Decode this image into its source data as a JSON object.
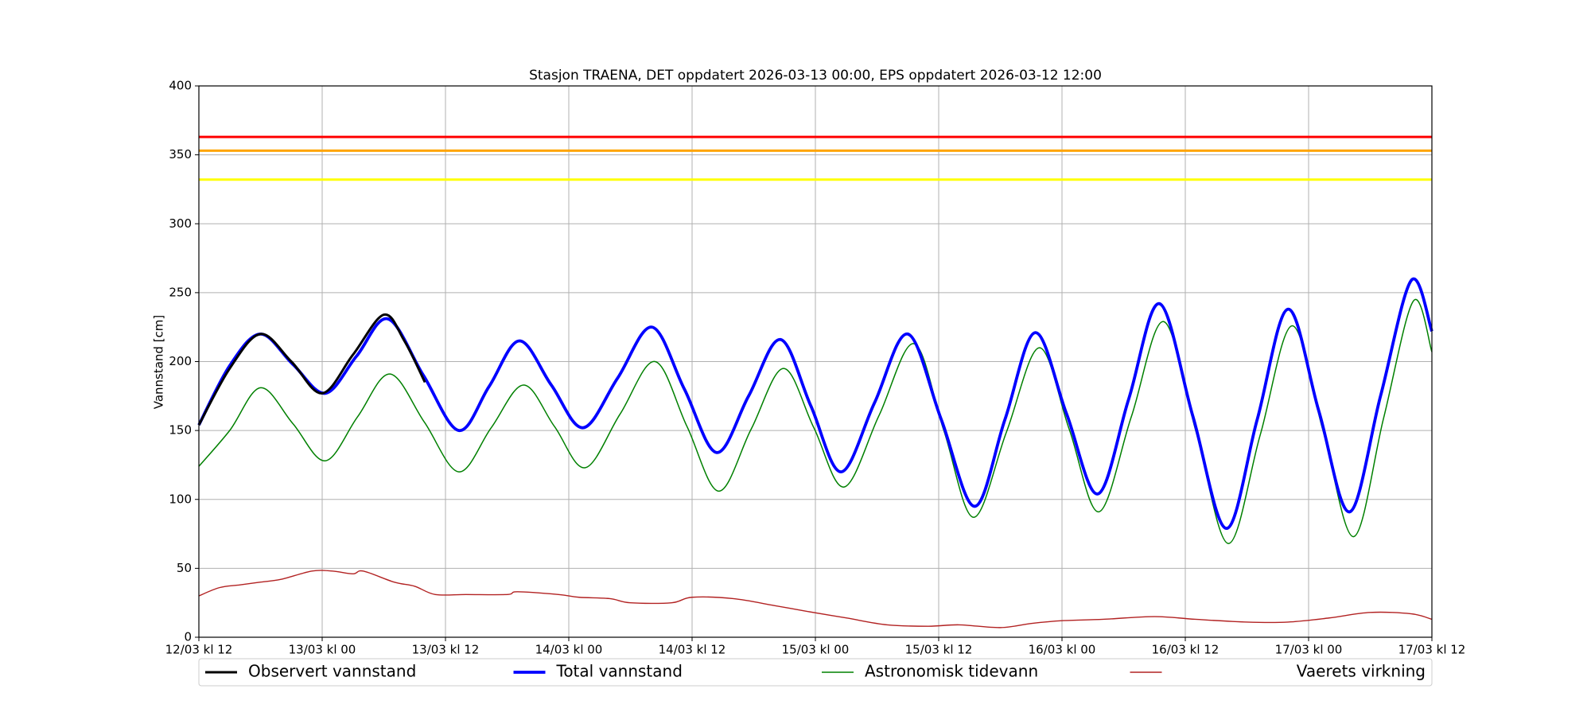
{
  "chart_data": {
    "type": "line",
    "title": "Stasjon TRAENA, DET oppdatert 2026-03-13 00:00, EPS oppdatert 2026-03-12 12:00",
    "ylabel": "Vannstand [cm]",
    "xlim": [
      0,
      120
    ],
    "xticks": [
      {
        "value": 0,
        "label": "12/03 kl 12"
      },
      {
        "value": 12,
        "label": "13/03 kl 00"
      },
      {
        "value": 24,
        "label": "13/03 kl 12"
      },
      {
        "value": 36,
        "label": "14/03 kl 00"
      },
      {
        "value": 48,
        "label": "14/03 kl 12"
      },
      {
        "value": 60,
        "label": "15/03 kl 00"
      },
      {
        "value": 72,
        "label": "15/03 kl 12"
      },
      {
        "value": 84,
        "label": "16/03 kl 00"
      },
      {
        "value": 96,
        "label": "16/03 kl 12"
      },
      {
        "value": 108,
        "label": "17/03 kl 00"
      },
      {
        "value": 120,
        "label": "17/03 kl 12"
      }
    ],
    "ylim": [
      0,
      400
    ],
    "yticks": [
      0,
      50,
      100,
      150,
      200,
      250,
      300,
      350,
      400
    ],
    "grid": true,
    "reference_lines": [
      {
        "value": 363,
        "color": "#ff0000"
      },
      {
        "value": 353,
        "color": "#ffa500"
      },
      {
        "value": 332,
        "color": "#ffff00"
      }
    ],
    "series": [
      {
        "name": "Observert vannstand",
        "color": "#000000",
        "width": 3,
        "x": [
          0,
          3,
          6,
          9,
          12,
          15,
          18,
          20,
          22
        ],
        "values": [
          154,
          195,
          220,
          200,
          177,
          205,
          234,
          215,
          185
        ]
      },
      {
        "name": "Total vannstand",
        "color": "#0000ff",
        "width": 3.8,
        "x": [
          0,
          3,
          6,
          9.15,
          12.3,
          15.35,
          18.4,
          21.85,
          25.3,
          28.25,
          31.2,
          34.3,
          37.4,
          40.75,
          44.1,
          47.25,
          50.4,
          53.5,
          56.6,
          59.55,
          62.5,
          65.75,
          69,
          72.25,
          75.5,
          78.45,
          81.4,
          84.45,
          87.5,
          90.5,
          93.5,
          96.75,
          100,
          103,
          106,
          109,
          112,
          115,
          118,
          120
        ],
        "values": [
          154,
          197,
          220,
          198,
          177,
          204,
          231,
          190,
          150,
          182,
          215,
          183,
          152,
          188,
          225,
          180,
          134,
          175,
          216,
          168,
          120,
          170,
          220,
          158,
          95,
          158,
          221,
          162,
          104,
          173,
          242,
          160,
          79,
          158,
          238,
          164,
          91,
          175,
          259,
          222
        ]
      },
      {
        "name": "Astronomisk tidevann",
        "color": "#008000",
        "width": 1.5,
        "x": [
          0,
          3,
          6,
          9.15,
          12.3,
          15.45,
          18.6,
          21.95,
          25.3,
          28.45,
          31.6,
          34.6,
          37.6,
          41,
          44.4,
          47.5,
          50.6,
          53.75,
          56.9,
          59.85,
          62.8,
          66.2,
          69.6,
          72.5,
          75.4,
          78.6,
          81.8,
          84.7,
          87.6,
          90.75,
          93.9,
          97.05,
          100.2,
          103.3,
          106.4,
          109.4,
          112.4,
          115.3,
          118.2,
          120
        ],
        "values": [
          124,
          150,
          181,
          155,
          128,
          160,
          191,
          156,
          120,
          152,
          183,
          153,
          123,
          162,
          200,
          153,
          106,
          151,
          195,
          152,
          109,
          161,
          213,
          150,
          87,
          149,
          210,
          151,
          91,
          160,
          229,
          149,
          68,
          147,
          226,
          150,
          73,
          159,
          244,
          207
        ]
      },
      {
        "name": "Vaerets virkning",
        "color": "#b22222",
        "width": 1.4,
        "x": [
          0,
          2,
          4,
          6,
          8,
          11,
          13,
          15,
          16,
          19,
          21,
          23,
          26,
          30,
          31,
          35,
          37,
          40,
          42,
          46,
          48,
          52,
          56,
          59,
          63,
          67,
          71,
          74,
          78,
          81,
          84,
          88,
          93,
          97,
          102,
          106,
          110,
          114,
          118,
          120
        ],
        "values": [
          30,
          36,
          38,
          40,
          42,
          48,
          48,
          46,
          48,
          40,
          37,
          31,
          31,
          31,
          33,
          31,
          29,
          28,
          25,
          25,
          29,
          28,
          23,
          19,
          14,
          9,
          8,
          9,
          7,
          10,
          12,
          13,
          15,
          13,
          11,
          11,
          14,
          18,
          17,
          13
        ]
      }
    ]
  }
}
